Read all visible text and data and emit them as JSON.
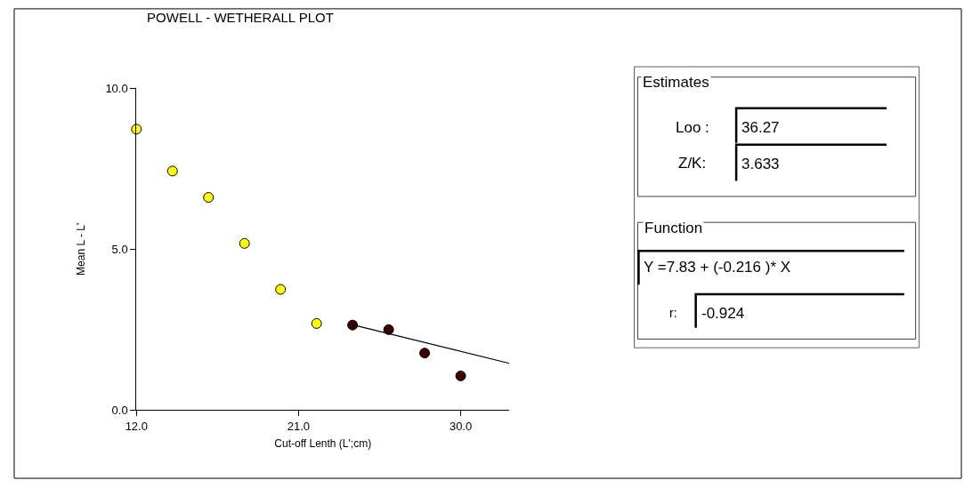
{
  "chart_data": {
    "type": "scatter",
    "title": "POWELL - WETHERALL PLOT",
    "xlabel": "Cut-off Lenth (L';cm)",
    "ylabel": "Mean L - L'",
    "xlim": [
      12,
      32.7
    ],
    "xticks": [
      {
        "value": 12,
        "label": "12.0"
      },
      {
        "value": 21,
        "label": "21.0"
      },
      {
        "value": 30,
        "label": "30.0"
      }
    ],
    "ylim": [
      0,
      10
    ],
    "yticks": [
      {
        "value": 0,
        "label": "0.0"
      },
      {
        "value": 5,
        "label": "5.0"
      },
      {
        "value": 10,
        "label": "10.0"
      }
    ],
    "marker": "circle",
    "series": [
      {
        "color": "#ffff00",
        "x": [
          12,
          14,
          16,
          18,
          20,
          22
        ],
        "values": [
          8.73,
          7.43,
          6.61,
          5.18,
          3.75,
          2.69
        ]
      },
      {
        "color": "#3d0000",
        "x": [
          24,
          26,
          28,
          30
        ],
        "values": [
          2.64,
          2.5,
          1.77,
          1.06
        ]
      },
      {
        "type": "line",
        "color": "#000000",
        "marker": "none",
        "x": [
          24,
          32.7
        ],
        "values": [
          2.65,
          1.45
        ]
      }
    ],
    "annotations": [
      "Estimates",
      "Loo :",
      "36.27",
      "Z/K:",
      "3.633",
      "Function",
      "Y =7.83 + (-0.216 )* X",
      "r:",
      "-0.924"
    ]
  }
}
